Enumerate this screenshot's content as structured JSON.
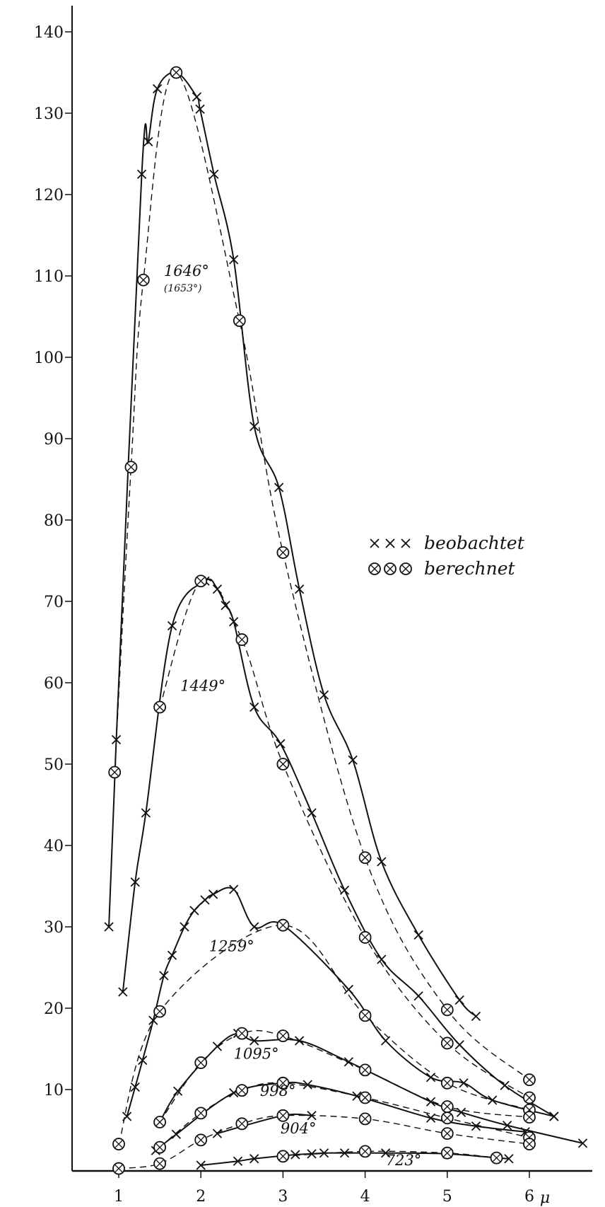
{
  "chart_data": {
    "type": "line",
    "title": "",
    "xlabel": "",
    "ylabel": "",
    "x_unit_label": "μ",
    "xlim": [
      0.4,
      6.8
    ],
    "ylim": [
      0,
      142
    ],
    "x_ticks": [
      "1",
      "2",
      "3",
      "4",
      "5",
      "6"
    ],
    "y_ticks": [
      "10",
      "20",
      "30",
      "40",
      "50",
      "60",
      "70",
      "80",
      "90",
      "100",
      "110",
      "120",
      "130",
      "140"
    ],
    "grid": false,
    "legend_position": "right",
    "legend": [
      {
        "marker": "×",
        "text": "beobachtet"
      },
      {
        "marker": "⊗",
        "text": "berechnet"
      }
    ],
    "series": [
      {
        "name": "1646°",
        "sub_label": "(1653°)",
        "label_at": [
          1.55,
          110
        ],
        "observed": [
          [
            0.88,
            30
          ],
          [
            0.97,
            53
          ],
          [
            1.28,
            122.5
          ],
          [
            1.36,
            126.5
          ],
          [
            1.47,
            133
          ],
          [
            1.7,
            135
          ],
          [
            1.95,
            132
          ],
          [
            1.99,
            130.5
          ],
          [
            2.16,
            122.5
          ],
          [
            2.4,
            112
          ],
          [
            2.65,
            91.5
          ],
          [
            2.95,
            84
          ],
          [
            3.2,
            71.5
          ],
          [
            3.5,
            58.5
          ],
          [
            3.85,
            50.5
          ],
          [
            4.2,
            38
          ],
          [
            4.65,
            29
          ],
          [
            5.15,
            21
          ],
          [
            5.35,
            19
          ]
        ],
        "calculated": [
          [
            0.95,
            49
          ],
          [
            1.15,
            86.5
          ],
          [
            1.3,
            109.5
          ],
          [
            1.7,
            135
          ],
          [
            2.47,
            104.5
          ],
          [
            3.0,
            76
          ],
          [
            4.0,
            38.5
          ],
          [
            5.0,
            19.8
          ],
          [
            6.0,
            11.2
          ]
        ]
      },
      {
        "name": "1449°",
        "label_at": [
          1.75,
          59
        ],
        "observed": [
          [
            1.05,
            22
          ],
          [
            1.2,
            35.5
          ],
          [
            1.33,
            44
          ],
          [
            1.65,
            67
          ],
          [
            2.05,
            72.5
          ],
          [
            2.2,
            71.5
          ],
          [
            2.3,
            69.5
          ],
          [
            2.4,
            67.5
          ],
          [
            2.65,
            57
          ],
          [
            2.97,
            52.5
          ],
          [
            3.35,
            44
          ],
          [
            3.75,
            34.5
          ],
          [
            4.2,
            26
          ],
          [
            4.65,
            21.5
          ],
          [
            5.15,
            15.5
          ],
          [
            5.7,
            10.5
          ],
          [
            6.3,
            6.7
          ]
        ],
        "calculated": [
          [
            1.5,
            57
          ],
          [
            2.0,
            72.5
          ],
          [
            2.5,
            65.3
          ],
          [
            3.0,
            50
          ],
          [
            4.0,
            28.7
          ],
          [
            5.0,
            15.7
          ],
          [
            6.0,
            9
          ]
        ]
      },
      {
        "name": "1259°",
        "label_at": [
          2.1,
          27
        ],
        "observed": [
          [
            1.1,
            6.7
          ],
          [
            1.2,
            10.3
          ],
          [
            1.29,
            13.6
          ],
          [
            1.42,
            18.5
          ],
          [
            1.55,
            24
          ],
          [
            1.65,
            26.5
          ],
          [
            1.8,
            30
          ],
          [
            1.92,
            32
          ],
          [
            2.05,
            33.3
          ],
          [
            2.15,
            34
          ],
          [
            2.4,
            34.6
          ],
          [
            2.65,
            30
          ],
          [
            3.0,
            30.2
          ],
          [
            3.8,
            22.3
          ],
          [
            4.25,
            16
          ],
          [
            4.8,
            11.5
          ],
          [
            5.2,
            10.8
          ],
          [
            5.55,
            8.7
          ],
          [
            6.3,
            6.7
          ]
        ],
        "calculated": [
          [
            1.0,
            3.3
          ],
          [
            1.5,
            19.6
          ],
          [
            3.0,
            30.2
          ],
          [
            4.0,
            19.1
          ],
          [
            5.0,
            10.8
          ],
          [
            6.0,
            7.5
          ]
        ]
      },
      {
        "name": "1095°",
        "label_at": [
          2.4,
          13.8
        ],
        "observed": [
          [
            1.5,
            6
          ],
          [
            1.72,
            9.8
          ],
          [
            2.2,
            15.3
          ],
          [
            2.45,
            16.9
          ],
          [
            2.65,
            16
          ],
          [
            3.2,
            16
          ],
          [
            3.8,
            13.4
          ],
          [
            4.8,
            8.5
          ],
          [
            5.17,
            7.2
          ],
          [
            5.73,
            5.6
          ],
          [
            6.65,
            3.4
          ]
        ],
        "calculated": [
          [
            1.5,
            6
          ],
          [
            2.0,
            13.3
          ],
          [
            2.5,
            16.9
          ],
          [
            3.0,
            16.6
          ],
          [
            4.0,
            12.4
          ],
          [
            5.0,
            7.9
          ],
          [
            6.0,
            6.6
          ]
        ]
      },
      {
        "name": "998°",
        "label_at": [
          2.72,
          9.2
        ],
        "observed": [
          [
            1.45,
            2.5
          ],
          [
            1.7,
            4.5
          ],
          [
            2.4,
            9.6
          ],
          [
            3.0,
            10.8
          ],
          [
            3.3,
            10.6
          ],
          [
            3.9,
            9.2
          ],
          [
            4.8,
            6.5
          ],
          [
            5.35,
            5.5
          ],
          [
            5.95,
            4.8
          ]
        ],
        "calculated": [
          [
            1.5,
            2.9
          ],
          [
            2.0,
            7.1
          ],
          [
            2.5,
            9.9
          ],
          [
            3.0,
            10.8
          ],
          [
            4.0,
            9.0
          ],
          [
            5.0,
            6.5
          ],
          [
            6.0,
            4.1
          ]
        ]
      },
      {
        "name": "904°",
        "label_at": [
          2.97,
          4.6
        ],
        "observed": [
          [
            2.2,
            4.6
          ],
          [
            3.0,
            6.8
          ],
          [
            3.35,
            6.8
          ]
        ],
        "calculated": [
          [
            1.0,
            0.3
          ],
          [
            1.5,
            0.9
          ],
          [
            2.0,
            3.8
          ],
          [
            2.5,
            5.8
          ],
          [
            3.0,
            6.8
          ],
          [
            4.0,
            6.4
          ],
          [
            5.0,
            4.6
          ],
          [
            6.0,
            3.3
          ]
        ]
      },
      {
        "name": "723°",
        "label_at": [
          4.25,
          0.7
        ],
        "observed": [
          [
            2.0,
            0.7
          ],
          [
            2.45,
            1.2
          ],
          [
            2.65,
            1.5
          ],
          [
            3.15,
            2.0
          ],
          [
            3.35,
            2.1
          ],
          [
            3.5,
            2.2
          ],
          [
            3.75,
            2.2
          ],
          [
            4.25,
            2.2
          ],
          [
            5.0,
            2.1
          ],
          [
            5.6,
            1.6
          ],
          [
            5.75,
            1.5
          ]
        ],
        "calculated": [
          [
            3.0,
            1.8
          ],
          [
            4.0,
            2.4
          ],
          [
            5.0,
            2.2
          ],
          [
            5.6,
            1.6
          ]
        ]
      }
    ]
  }
}
